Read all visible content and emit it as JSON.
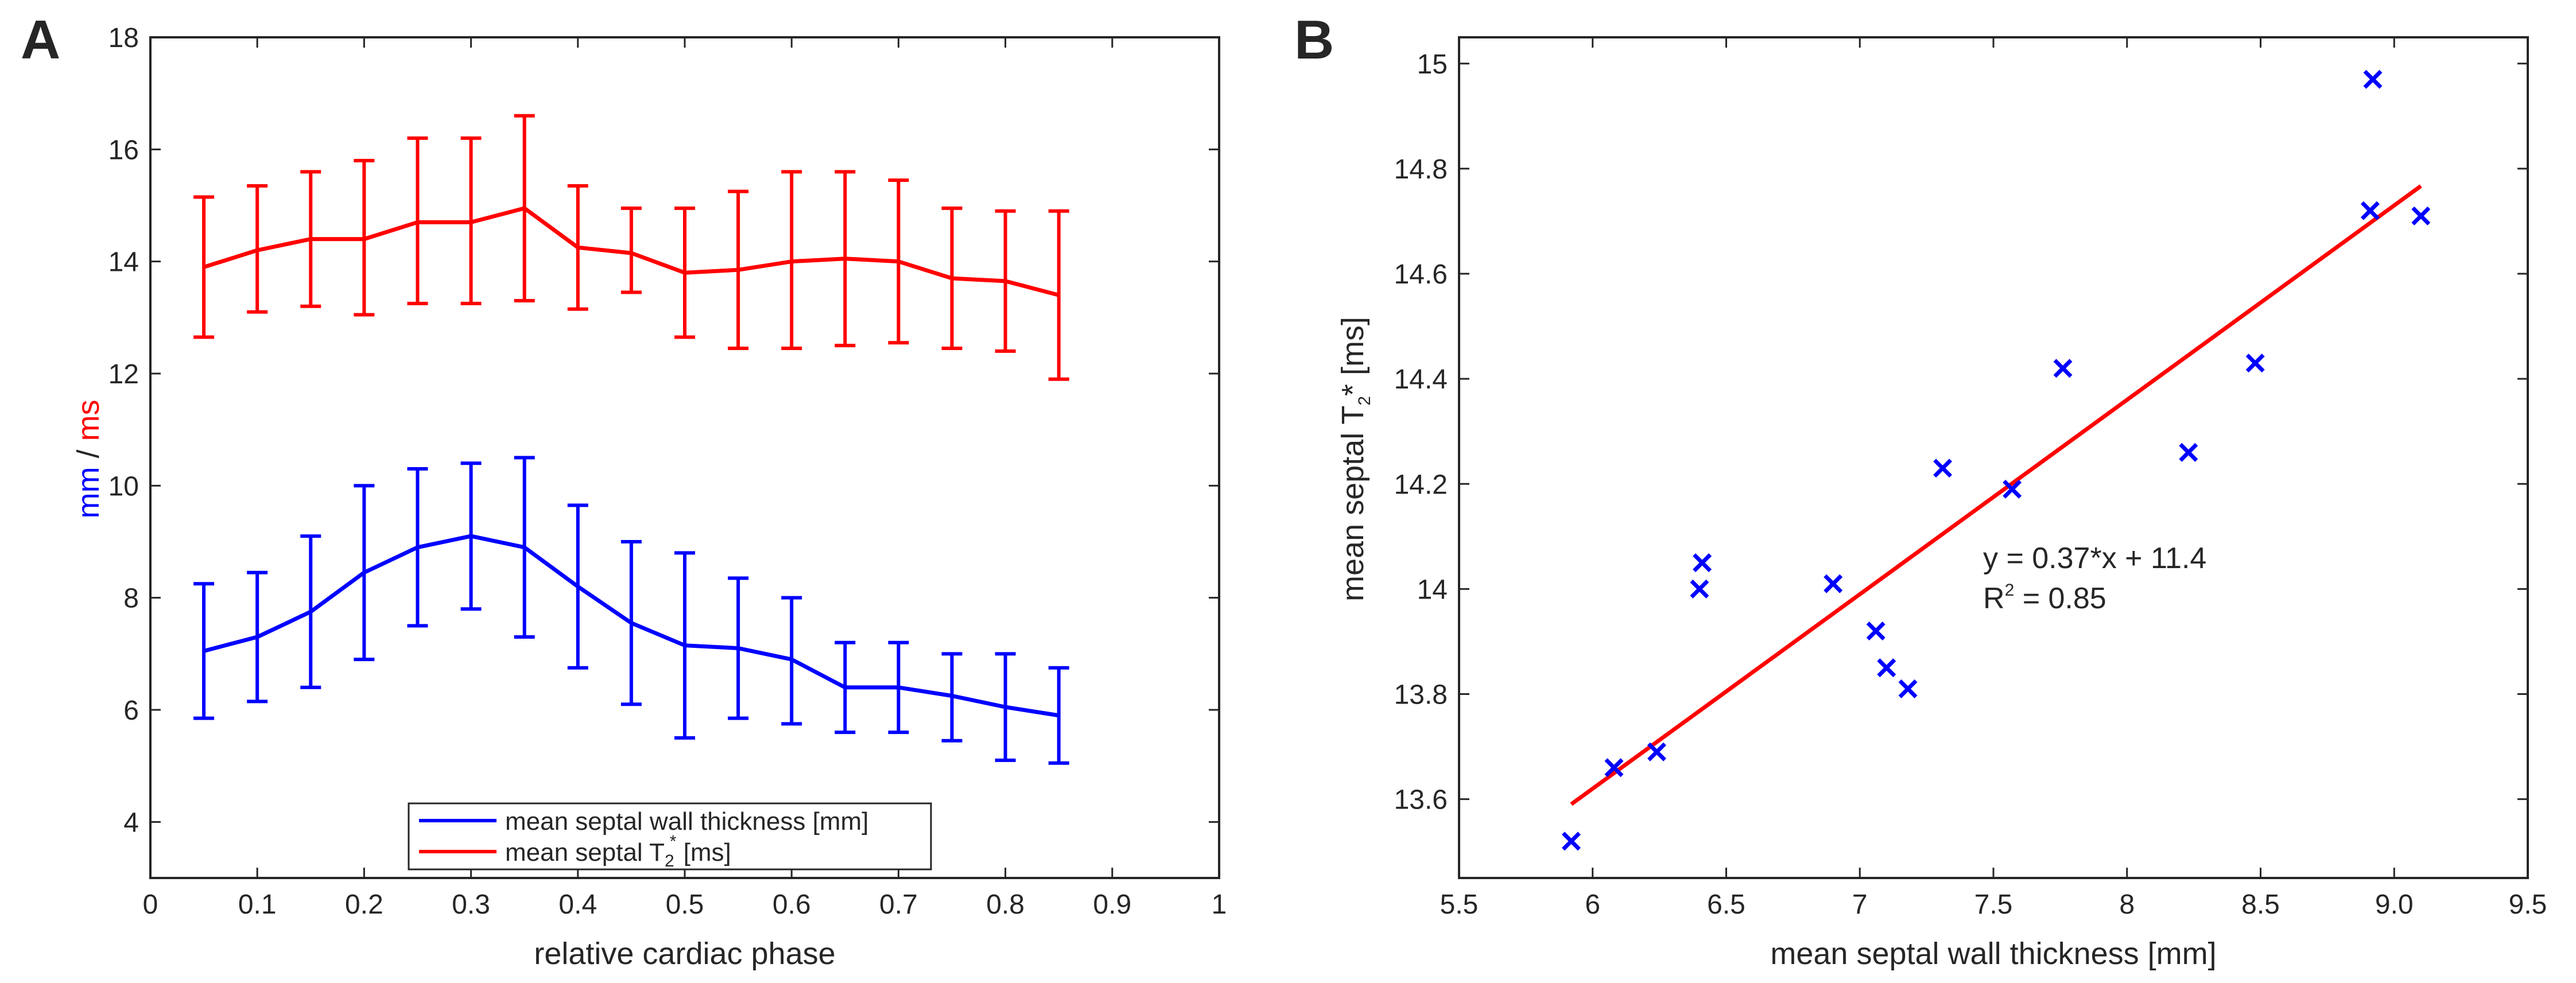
{
  "figure": {
    "panel_a_label": "A",
    "panel_b_label": "B"
  },
  "chart_data": [
    {
      "type": "line",
      "panel": "A",
      "error_bars": true,
      "xlabel": "relative cardiac phase",
      "ylabel_mm": "mm",
      "ylabel_slash": " / ",
      "ylabel_ms": "ms",
      "xlim": [
        0,
        1
      ],
      "ylim": [
        3,
        18
      ],
      "xticks": [
        0,
        0.1,
        0.2,
        0.3,
        0.4,
        0.5,
        0.6,
        0.7,
        0.8,
        0.9,
        1
      ],
      "xtick_labels": [
        "0",
        "0.1",
        "0.2",
        "0.3",
        "0.4",
        "0.5",
        "0.6",
        "0.7",
        "0.8",
        "0.9",
        "1"
      ],
      "yticks": [
        4,
        6,
        8,
        10,
        12,
        14,
        16,
        18
      ],
      "ytick_labels": [
        "4",
        "6",
        "8",
        "10",
        "12",
        "14",
        "16",
        "18"
      ],
      "legend_position": "bottom-center",
      "x": [
        0.05,
        0.1,
        0.15,
        0.2,
        0.25,
        0.3,
        0.35,
        0.4,
        0.45,
        0.5,
        0.55,
        0.6,
        0.65,
        0.7,
        0.75,
        0.8,
        0.85
      ],
      "series": [
        {
          "name": "mean septal wall thickness [mm]",
          "legend_main": "mean septal wall thickness [mm]",
          "color": "#0000ff",
          "values": [
            7.05,
            7.3,
            7.75,
            8.45,
            8.9,
            9.1,
            8.9,
            8.2,
            7.55,
            7.15,
            7.1,
            6.9,
            6.4,
            6.4,
            6.25,
            6.05,
            5.9
          ],
          "err_low": [
            5.85,
            6.15,
            6.4,
            6.9,
            7.5,
            7.8,
            7.3,
            6.75,
            6.1,
            5.5,
            5.85,
            5.75,
            5.6,
            5.6,
            5.45,
            5.1,
            5.05
          ],
          "err_high": [
            8.25,
            8.45,
            9.1,
            10.0,
            10.3,
            10.4,
            10.5,
            9.65,
            9.0,
            8.8,
            8.35,
            8.0,
            7.2,
            7.2,
            7.0,
            7.0,
            6.75
          ]
        },
        {
          "name": "mean septal T2* [ms]",
          "legend_main": "mean septal T",
          "legend_sub": "2",
          "legend_sup": "*",
          "legend_rest": " [ms]",
          "color": "#ff0000",
          "values": [
            13.9,
            14.2,
            14.4,
            14.4,
            14.7,
            14.7,
            14.95,
            14.25,
            14.15,
            13.8,
            13.85,
            14.0,
            14.05,
            14.0,
            13.7,
            13.65,
            13.4
          ],
          "err_low": [
            12.65,
            13.1,
            13.2,
            13.05,
            13.25,
            13.25,
            13.3,
            13.15,
            13.45,
            12.65,
            12.45,
            12.45,
            12.5,
            12.55,
            12.45,
            12.4,
            11.9
          ],
          "err_high": [
            15.15,
            15.35,
            15.6,
            15.8,
            16.2,
            16.2,
            16.6,
            15.35,
            14.95,
            14.95,
            15.25,
            15.6,
            15.6,
            15.45,
            14.95,
            14.9,
            14.9
          ]
        }
      ]
    },
    {
      "type": "scatter",
      "panel": "B",
      "xlabel": "mean septal wall thickness [mm]",
      "ylabel_main": "mean septal T",
      "ylabel_sub": "2",
      "ylabel_rest": "* [ms]",
      "xlim": [
        5.5,
        9.5
      ],
      "ylim": [
        13.45,
        15.05
      ],
      "xticks": [
        5.5,
        6,
        6.5,
        7,
        7.5,
        8,
        8.5,
        9,
        9.5
      ],
      "xtick_labels": [
        "5.5",
        "6",
        "6.5",
        "7",
        "7.5",
        "8",
        "8.5",
        "9.0",
        "9.5"
      ],
      "yticks": [
        13.6,
        13.8,
        14,
        14.2,
        14.4,
        14.6,
        14.8,
        15
      ],
      "ytick_labels": [
        "13.6",
        "13.8",
        "14",
        "14.2",
        "14.4",
        "14.6",
        "14.8",
        "15"
      ],
      "points": {
        "x": [
          5.92,
          6.08,
          6.24,
          6.4,
          6.41,
          6.9,
          7.06,
          7.1,
          7.18,
          7.31,
          7.57,
          7.76,
          8.23,
          8.48,
          8.91,
          8.92,
          9.1
        ],
        "y": [
          13.52,
          13.66,
          13.69,
          14.0,
          14.05,
          14.01,
          13.92,
          13.85,
          13.81,
          14.23,
          14.19,
          14.42,
          14.26,
          14.43,
          14.72,
          14.97,
          14.71
        ],
        "marker": "x",
        "color": "#0000ff"
      },
      "fit": {
        "slope": 0.37,
        "intercept": 11.4,
        "x_range": [
          5.92,
          9.1
        ],
        "color": "#ff0000"
      },
      "annotation_line1": "y   = 0.37*x + 11.4",
      "annotation_r": "R",
      "annotation_sup": "2",
      "annotation_rest": " = 0.85"
    }
  ]
}
